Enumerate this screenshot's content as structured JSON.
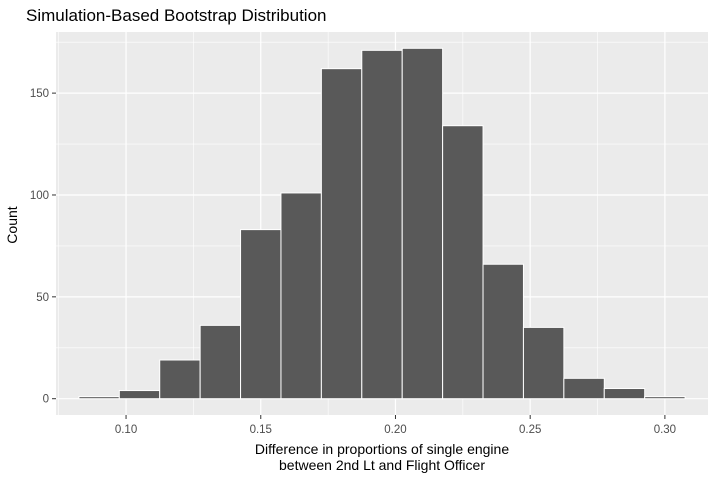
{
  "chart_data": {
    "type": "bar",
    "title": "Simulation-Based Bootstrap Distribution",
    "xlabel": [
      "Difference in proportions of single engine",
      "between 2nd Lt and Flight Officer"
    ],
    "ylabel": "Count",
    "xlim": [
      0.074,
      0.316
    ],
    "ylim": [
      -8,
      180
    ],
    "x_ticks": [
      0.1,
      0.15,
      0.2,
      0.25,
      0.3
    ],
    "x_tick_labels": [
      "0.10",
      "0.15",
      "0.20",
      "0.25",
      "0.30"
    ],
    "y_ticks": [
      0,
      50,
      100,
      150
    ],
    "y_tick_labels": [
      "0",
      "50",
      "100",
      "150"
    ],
    "bin_width": 0.015,
    "bins": [
      {
        "start": 0.0825,
        "count": 1
      },
      {
        "start": 0.0975,
        "count": 4
      },
      {
        "start": 0.1125,
        "count": 19
      },
      {
        "start": 0.1275,
        "count": 36
      },
      {
        "start": 0.1425,
        "count": 83
      },
      {
        "start": 0.1575,
        "count": 101
      },
      {
        "start": 0.1725,
        "count": 162
      },
      {
        "start": 0.1875,
        "count": 171
      },
      {
        "start": 0.2025,
        "count": 172
      },
      {
        "start": 0.2175,
        "count": 134
      },
      {
        "start": 0.2325,
        "count": 66
      },
      {
        "start": 0.2475,
        "count": 35
      },
      {
        "start": 0.2625,
        "count": 10
      },
      {
        "start": 0.2775,
        "count": 5
      },
      {
        "start": 0.2925,
        "count": 1
      }
    ],
    "grid": true,
    "colors": {
      "panel": "#ebebeb",
      "grid_major": "#ffffff",
      "bar_fill": "#595959",
      "bar_outline": "#ffffff"
    }
  }
}
